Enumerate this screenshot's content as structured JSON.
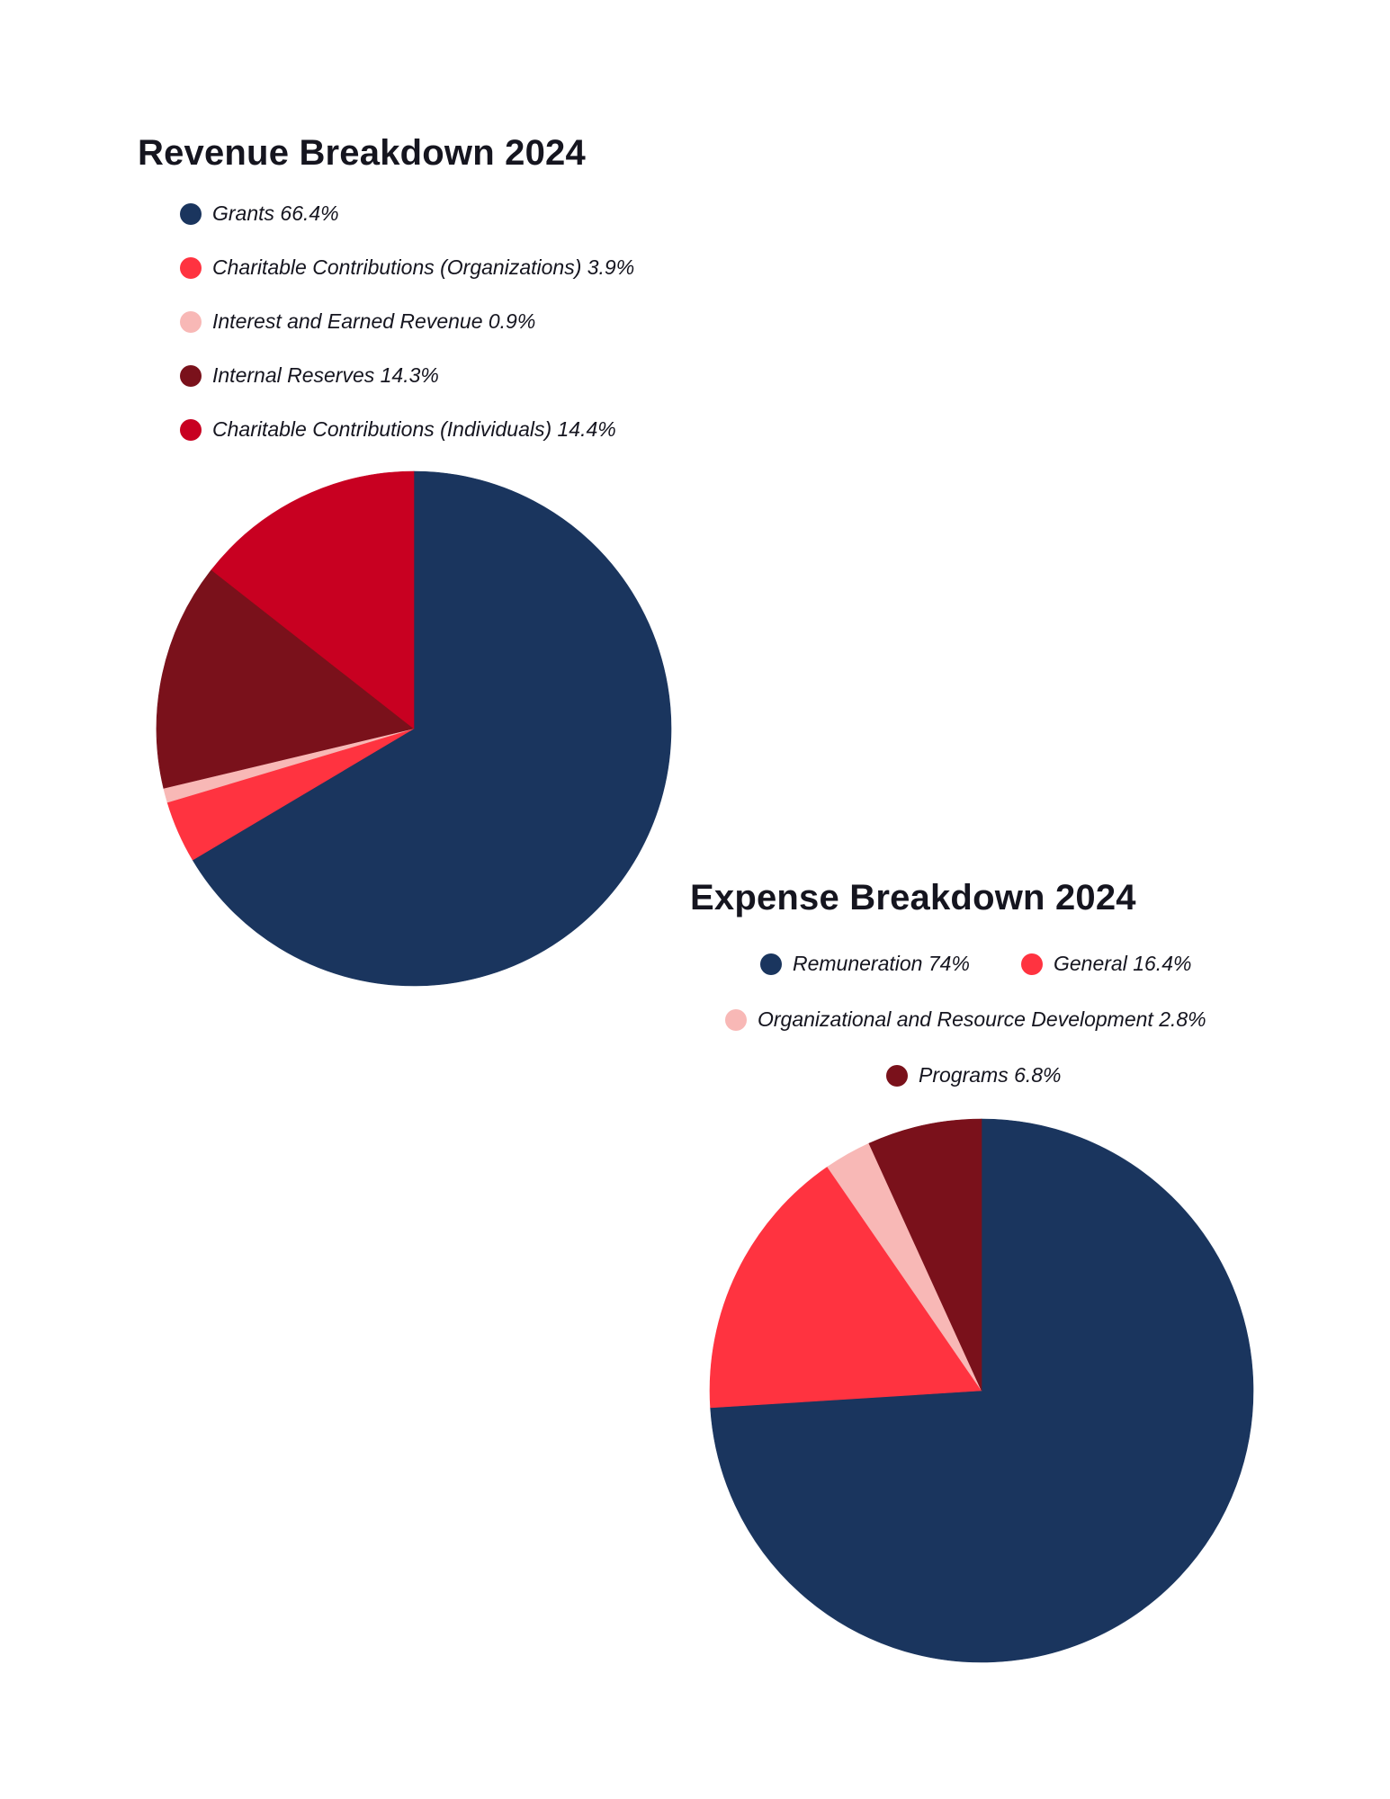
{
  "chart_data": [
    {
      "type": "pie",
      "title": "Revenue Breakdown 2024",
      "categories": [
        "Grants",
        "Charitable Contributions (Organizations)",
        "Interest and Earned Revenue",
        "Internal Reserves",
        "Charitable Contributions (Individuals)"
      ],
      "values": [
        66.4,
        3.9,
        0.9,
        14.3,
        14.4
      ],
      "value_labels": [
        "66.4%",
        "3.9%",
        "0.9%",
        "14.3%",
        "14.4%"
      ],
      "colors": [
        "#1a355e",
        "#ff3340",
        "#f8b8b6",
        "#7a111b",
        "#c80021"
      ],
      "legend": {
        "position": "top-left",
        "items": [
          "Grants 66.4%",
          "Charitable Contributions (Organizations) 3.9%",
          "Interest and Earned Revenue 0.9%",
          "Internal Reserves 14.3%",
          "Charitable Contributions (Individuals) 14.4%"
        ]
      }
    },
    {
      "type": "pie",
      "title": "Expense Breakdown 2024",
      "categories": [
        "Remuneration",
        "General",
        "Organizational and Resource Development",
        "Programs"
      ],
      "values": [
        74,
        16.4,
        2.8,
        6.8
      ],
      "value_labels": [
        "74%",
        "16.4%",
        "2.8%",
        "6.8%"
      ],
      "colors": [
        "#1a355e",
        "#ff3340",
        "#f8b8b6",
        "#7a111b"
      ],
      "legend": {
        "position": "top-center",
        "items": [
          "Remuneration 74%",
          "General 16.4%",
          "Organizational and Resource Development 2.8%",
          "Programs 6.8%"
        ]
      }
    }
  ]
}
